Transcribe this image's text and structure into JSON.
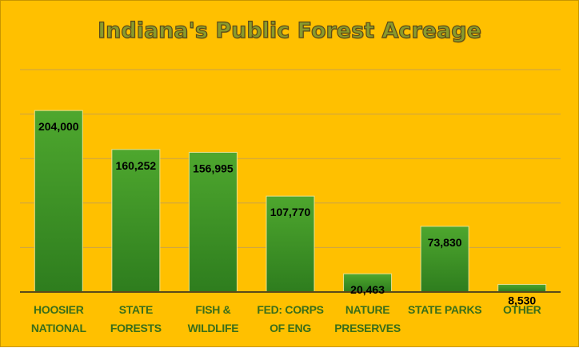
{
  "chart_data": {
    "type": "bar",
    "title": "Indiana's Public Forest Acreage",
    "categories": [
      [
        "HOOSIER",
        "NATIONAL"
      ],
      [
        "STATE",
        "FORESTS"
      ],
      [
        "FISH &",
        "WILDLIFE"
      ],
      [
        "FED: CORPS",
        "OF ENG"
      ],
      [
        "NATURE",
        "PRESERVES"
      ],
      [
        "STATE PARKS"
      ],
      [
        "OTHER"
      ]
    ],
    "values": [
      204000,
      160252,
      156995,
      107770,
      20463,
      73830,
      8530
    ],
    "data_labels": [
      "204,000",
      "160,252",
      "156,995",
      "107,770",
      "20,463",
      "73,830",
      "8,530"
    ],
    "ylim": [
      0,
      250000
    ],
    "grid": true,
    "colors": {
      "background": "#ffc000",
      "bar_top": "#4ea72e",
      "bar_bottom": "#2e7d1e",
      "bar_edge": "#e8e090",
      "grid": "#c9a24a",
      "axis": "#5a4a1a",
      "category_text": "#3a6e1a"
    }
  }
}
